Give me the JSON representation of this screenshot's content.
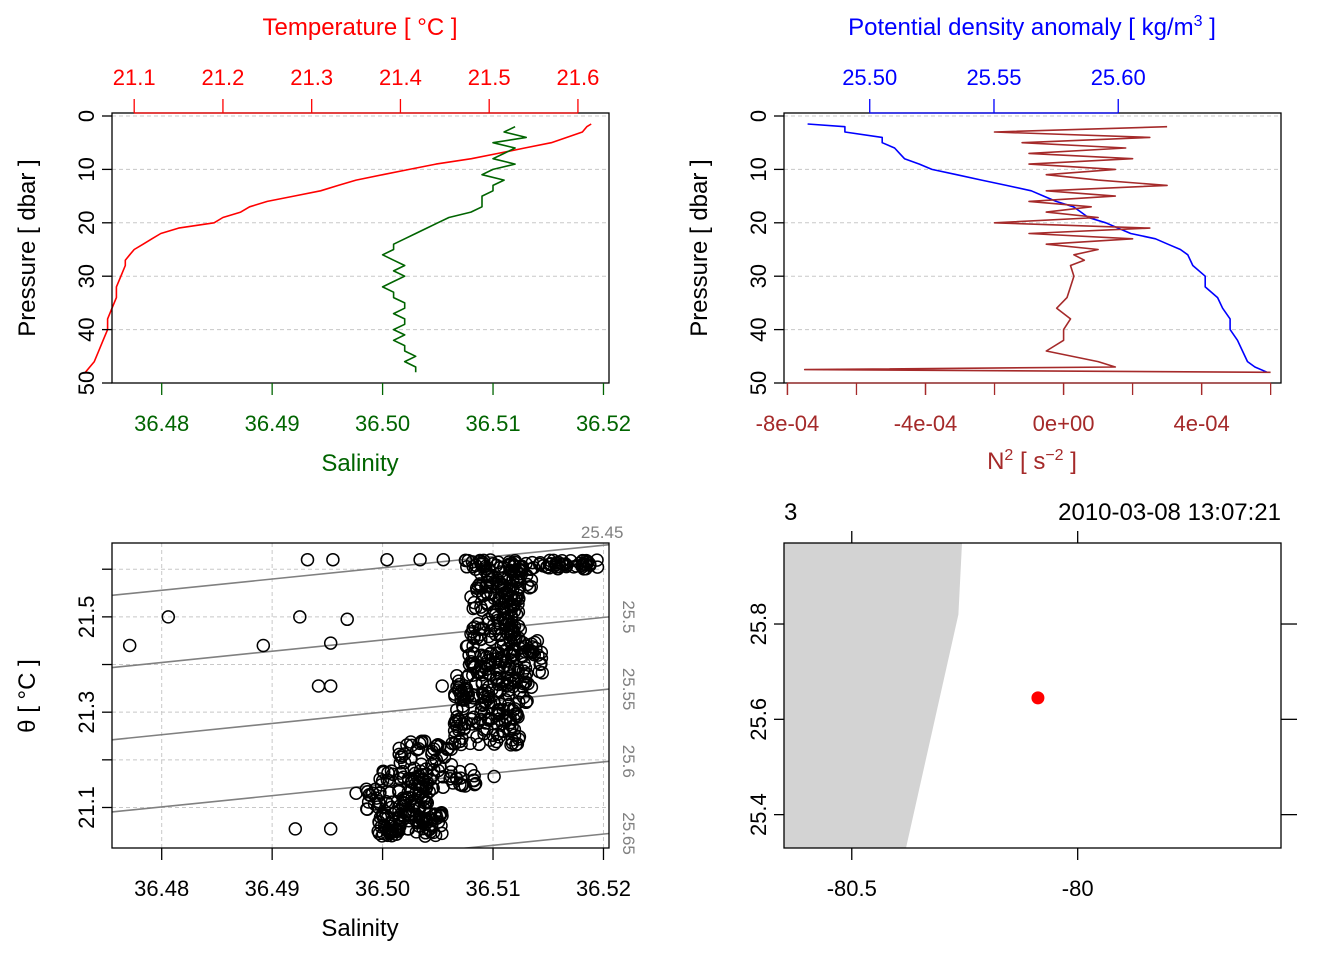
{
  "chart_data": [
    {
      "id": "ts-profile",
      "type": "line",
      "top_axis": {
        "title": "Temperature [ °C ]",
        "ticks": [
          "21.1",
          "21.2",
          "21.3",
          "21.4",
          "21.5",
          "21.6"
        ],
        "range": [
          21.075,
          21.635
        ],
        "color": "#ff0000"
      },
      "bottom_axis": {
        "title": "Salinity",
        "ticks": [
          "36.48",
          "36.49",
          "36.50",
          "36.51",
          "36.52"
        ],
        "range": [
          36.4755,
          36.5205
        ],
        "color": "#006400"
      },
      "y_axis": {
        "title": "Pressure [ dbar ]",
        "ticks": [
          "0",
          "10",
          "20",
          "30",
          "40",
          "50"
        ],
        "range": [
          0,
          50
        ],
        "reversed": true
      },
      "grid": true,
      "series": [
        {
          "name": "Temperature",
          "color": "#ff0000",
          "pressure": [
            1.5,
            2,
            3,
            5,
            6,
            7,
            8,
            9,
            10,
            11,
            12,
            13,
            14,
            15,
            16,
            17,
            18,
            19,
            20,
            21,
            22,
            23,
            24,
            25,
            26,
            27,
            28,
            30,
            32,
            34,
            36,
            38,
            40,
            42,
            44,
            46,
            47,
            48
          ],
          "values": [
            21.615,
            21.61,
            21.605,
            21.57,
            21.54,
            21.51,
            21.48,
            21.44,
            21.41,
            21.38,
            21.35,
            21.33,
            21.31,
            21.28,
            21.25,
            21.23,
            21.22,
            21.2,
            21.19,
            21.15,
            21.13,
            21.12,
            21.11,
            21.1,
            21.095,
            21.09,
            21.09,
            21.085,
            21.08,
            21.08,
            21.075,
            21.07,
            21.07,
            21.065,
            21.06,
            21.055,
            21.05,
            21.045
          ]
        },
        {
          "name": "Salinity",
          "color": "#006400",
          "pressure": [
            2,
            3,
            4,
            5,
            6,
            7,
            8,
            9,
            10,
            11,
            12,
            13,
            14,
            15,
            16,
            17,
            18,
            19,
            20,
            21,
            22,
            23,
            24,
            25,
            26,
            27,
            28,
            29,
            30,
            31,
            32,
            33,
            34,
            35,
            36,
            37,
            38,
            39,
            40,
            41,
            42,
            43,
            44,
            45,
            46,
            47,
            48
          ],
          "values": [
            36.512,
            36.511,
            36.513,
            36.51,
            36.512,
            36.511,
            36.51,
            36.512,
            36.51,
            36.509,
            36.511,
            36.51,
            36.51,
            36.509,
            36.509,
            36.509,
            36.508,
            36.506,
            36.505,
            36.504,
            36.503,
            36.502,
            36.501,
            36.501,
            36.5,
            36.501,
            36.502,
            36.501,
            36.502,
            36.501,
            36.5,
            36.501,
            36.501,
            36.502,
            36.502,
            36.501,
            36.502,
            36.502,
            36.501,
            36.502,
            36.501,
            36.502,
            36.502,
            36.503,
            36.502,
            36.503,
            36.503
          ]
        }
      ]
    },
    {
      "id": "density-n2-profile",
      "type": "line",
      "top_axis": {
        "title": "Potential density anomaly [ kg/m",
        "title_sup": "3",
        "title_end": " ]",
        "ticks": [
          "25.50",
          "25.55",
          "25.60"
        ],
        "range": [
          25.4655,
          25.6655
        ],
        "color": "#0000ff"
      },
      "bottom_axis": {
        "title": "N",
        "title_sup": "2",
        "title_mid": " [ s",
        "title_sup2": "−2",
        "title_end": " ]",
        "ticks": [
          "-8e-04",
          "-4e-04",
          "0e+00",
          "4e-04"
        ],
        "range": [
          -0.00081,
          0.00063
        ],
        "color": "#a52a2a"
      },
      "y_axis": {
        "title": "Pressure [ dbar ]",
        "ticks": [
          "0",
          "10",
          "20",
          "30",
          "40",
          "50"
        ],
        "range": [
          0,
          50
        ],
        "reversed": true
      },
      "grid": true,
      "series": [
        {
          "name": "Potential density anomaly",
          "color": "#0000ff",
          "pressure": [
            1.5,
            2,
            3,
            4,
            5,
            6,
            7,
            8,
            9,
            10,
            11,
            12,
            13,
            14,
            15,
            16,
            17,
            18,
            19,
            20,
            21,
            22,
            23,
            24,
            25,
            26,
            28,
            30,
            32,
            34,
            36,
            38,
            40,
            42,
            44,
            46,
            47,
            48
          ],
          "values": [
            25.475,
            25.49,
            25.49,
            25.505,
            25.505,
            25.51,
            25.512,
            25.514,
            25.52,
            25.525,
            25.535,
            25.545,
            25.555,
            25.565,
            25.57,
            25.575,
            25.582,
            25.585,
            25.588,
            25.595,
            25.6,
            25.605,
            25.615,
            25.62,
            25.625,
            25.628,
            25.63,
            25.635,
            25.635,
            25.64,
            25.642,
            25.645,
            25.645,
            25.648,
            25.65,
            25.652,
            25.655,
            25.66
          ]
        },
        {
          "name": "N2",
          "color": "#a52a2a",
          "pressure": [
            2,
            3,
            4,
            5,
            6,
            7,
            8,
            9,
            10,
            11,
            12,
            13,
            14,
            15,
            16,
            17,
            18,
            19,
            20,
            21,
            22,
            23,
            24,
            25,
            26,
            27,
            28,
            30,
            32,
            34,
            36,
            38,
            40,
            42,
            44,
            46,
            47,
            47.5,
            48
          ],
          "values": [
            0.0003,
            -0.0002,
            0.00025,
            -0.00012,
            0.00018,
            -0.0001,
            0.0002,
            -0.0001,
            0.00015,
            -5e-05,
            0.0001,
            0.0003,
            -5e-05,
            0.00015,
            -0.0001,
            8e-05,
            -5e-05,
            0.0001,
            -0.0002,
            0.00025,
            -0.0001,
            0.0002,
            -5e-05,
            0.0001,
            3e-05,
            6e-05,
            2e-05,
            3e-05,
            2e-05,
            1e-05,
            -2e-05,
            2e-05,
            0.0,
            0.0,
            -5e-05,
            0.0001,
            0.00015,
            -0.00075,
            0.0006
          ]
        }
      ]
    },
    {
      "id": "ts-diagram",
      "type": "scatter",
      "x_axis": {
        "title": "Salinity",
        "ticks": [
          "36.48",
          "36.49",
          "36.50",
          "36.51",
          "36.52"
        ],
        "range": [
          36.4755,
          36.5205
        ]
      },
      "y_axis": {
        "title": "θ [ °C ]",
        "ticks": [
          "21.1",
          "21.3",
          "21.5"
        ],
        "range": [
          21.015,
          21.655
        ]
      },
      "grid": true,
      "isopycnals": [
        {
          "label": "25.45",
          "sigma": 25.45,
          "label_side": "top"
        },
        {
          "label": "25.5",
          "sigma": 25.5,
          "label_side": "right"
        },
        {
          "label": "25.55",
          "sigma": 25.55,
          "label_side": "right"
        },
        {
          "label": "25.6",
          "sigma": 25.6,
          "label_side": "right"
        },
        {
          "label": "25.65",
          "sigma": 25.65,
          "label_side": "right"
        }
      ],
      "isopycnal_model": {
        "ref_s": 36.5,
        "ref_t": 21.3,
        "ref_sigma": 25.55,
        "dsigma_ds": 0.78,
        "dsigma_dt": -0.33
      },
      "scattered_points": [
        {
          "s": 36.4771,
          "t": 21.44
        },
        {
          "s": 36.4806,
          "t": 21.5
        },
        {
          "s": 36.4892,
          "t": 21.44
        },
        {
          "s": 36.4925,
          "t": 21.5
        },
        {
          "s": 36.4953,
          "t": 21.445
        },
        {
          "s": 36.4968,
          "t": 21.495
        },
        {
          "s": 36.4932,
          "t": 21.62
        },
        {
          "s": 36.4955,
          "t": 21.62
        },
        {
          "s": 36.5004,
          "t": 21.62
        },
        {
          "s": 36.5034,
          "t": 21.62
        },
        {
          "s": 36.5055,
          "t": 21.62
        },
        {
          "s": 36.4942,
          "t": 21.355
        },
        {
          "s": 36.4953,
          "t": 21.355
        },
        {
          "s": 36.5054,
          "t": 21.355
        },
        {
          "s": 36.4921,
          "t": 21.055
        },
        {
          "s": 36.4953,
          "t": 21.055
        },
        {
          "s": 36.4976,
          "t": 21.13
        },
        {
          "s": 36.5101,
          "t": 21.165
        }
      ],
      "point_clusters": [
        {
          "s": [
            36.5075,
            36.5195
          ],
          "t": [
            21.6,
            21.62
          ],
          "n": 80
        },
        {
          "s": [
            36.5085,
            36.5135
          ],
          "t": [
            21.56,
            21.6
          ],
          "n": 50
        },
        {
          "s": [
            36.508,
            36.5125
          ],
          "t": [
            21.45,
            21.56
          ],
          "n": 110
        },
        {
          "s": [
            36.5075,
            36.5145
          ],
          "t": [
            21.38,
            21.45
          ],
          "n": 90
        },
        {
          "s": [
            36.5065,
            36.5135
          ],
          "t": [
            21.32,
            21.38
          ],
          "n": 80
        },
        {
          "s": [
            36.5065,
            36.5125
          ],
          "t": [
            21.23,
            21.32
          ],
          "n": 90
        },
        {
          "s": [
            36.5015,
            36.5065
          ],
          "t": [
            21.18,
            21.24
          ],
          "n": 40
        },
        {
          "s": [
            36.4995,
            36.5085
          ],
          "t": [
            21.14,
            21.18
          ],
          "n": 60
        },
        {
          "s": [
            36.4985,
            36.5045
          ],
          "t": [
            21.09,
            21.14
          ],
          "n": 60
        },
        {
          "s": [
            36.4995,
            36.5055
          ],
          "t": [
            21.04,
            21.09
          ],
          "n": 90
        }
      ],
      "random_seed": 7
    },
    {
      "id": "station-map",
      "type": "map",
      "top_labels": {
        "station": "3",
        "datetime": "2010-03-08 13:07:21"
      },
      "x_axis": {
        "ticks": [
          "-80.5",
          "-80"
        ],
        "range": [
          -80.65,
          -79.55
        ]
      },
      "y_axis": {
        "ticks": [
          "25.4",
          "25.6",
          "25.8"
        ],
        "range": [
          25.33,
          25.97
        ]
      },
      "coastline": [
        [
          -80.65,
          25.97
        ],
        [
          -80.256,
          25.97
        ],
        [
          -80.264,
          25.82
        ],
        [
          -80.38,
          25.33
        ],
        [
          -80.65,
          25.33
        ]
      ],
      "land_color": "#d3d3d3",
      "station": {
        "lon": -80.088,
        "lat": 25.645,
        "color": "#ff0000"
      }
    }
  ]
}
